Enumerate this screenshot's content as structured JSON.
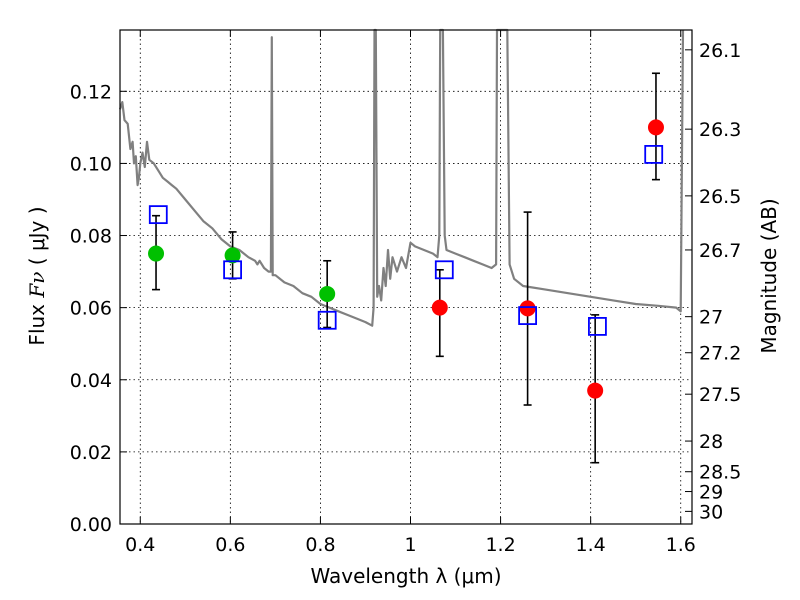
{
  "chart_data": {
    "type": "scatter",
    "xlabel": "Wavelength  λ (μm)",
    "ylabel_text": "Flux ",
    "ylabel_math": "Fν",
    "ylabel_unit": " ( μJy )",
    "right_ylabel": "Magnitude (AB)",
    "xlim": [
      0.355,
      1.625
    ],
    "ylim": [
      0.0,
      0.137
    ],
    "grid": true,
    "x_ticks": [
      {
        "value": 0.4,
        "label": "0.4"
      },
      {
        "value": 0.6,
        "label": "0.6"
      },
      {
        "value": 0.8,
        "label": "0.8"
      },
      {
        "value": 1.0,
        "label": "1"
      },
      {
        "value": 1.2,
        "label": "1.2"
      },
      {
        "value": 1.4,
        "label": "1.4"
      },
      {
        "value": 1.6,
        "label": "1.6"
      }
    ],
    "y_ticks": [
      {
        "value": 0.0,
        "label": "0.00"
      },
      {
        "value": 0.02,
        "label": "0.02"
      },
      {
        "value": 0.04,
        "label": "0.04"
      },
      {
        "value": 0.06,
        "label": "0.06"
      },
      {
        "value": 0.08,
        "label": "0.08"
      },
      {
        "value": 0.1,
        "label": "0.10"
      },
      {
        "value": 0.12,
        "label": "0.12"
      }
    ],
    "right_ticks": [
      {
        "flux": 0.1315,
        "label": "26.1"
      },
      {
        "flux": 0.1095,
        "label": "26.3"
      },
      {
        "flux": 0.091,
        "label": "26.5"
      },
      {
        "flux": 0.076,
        "label": "26.7"
      },
      {
        "flux": 0.0575,
        "label": "27"
      },
      {
        "flux": 0.0475,
        "label": "27.2"
      },
      {
        "flux": 0.036,
        "label": "27.5"
      },
      {
        "flux": 0.023,
        "label": "28"
      },
      {
        "flux": 0.0145,
        "label": "28.5"
      },
      {
        "flux": 0.009,
        "label": "29"
      },
      {
        "flux": 0.0035,
        "label": "30"
      }
    ],
    "model_spectrum": {
      "color": "#808080",
      "points": [
        [
          0.355,
          0.115
        ],
        [
          0.36,
          0.117
        ],
        [
          0.365,
          0.112
        ],
        [
          0.372,
          0.111
        ],
        [
          0.378,
          0.104
        ],
        [
          0.383,
          0.106
        ],
        [
          0.386,
          0.1
        ],
        [
          0.39,
          0.102
        ],
        [
          0.394,
          0.094
        ],
        [
          0.397,
          0.096
        ],
        [
          0.4,
          0.1
        ],
        [
          0.405,
          0.103
        ],
        [
          0.41,
          0.099
        ],
        [
          0.415,
          0.106
        ],
        [
          0.42,
          0.101
        ],
        [
          0.43,
          0.1
        ],
        [
          0.44,
          0.098
        ],
        [
          0.45,
          0.096
        ],
        [
          0.46,
          0.095
        ],
        [
          0.47,
          0.094
        ],
        [
          0.48,
          0.093
        ],
        [
          0.5,
          0.09
        ],
        [
          0.52,
          0.087
        ],
        [
          0.54,
          0.084
        ],
        [
          0.56,
          0.082
        ],
        [
          0.58,
          0.079
        ],
        [
          0.6,
          0.077
        ],
        [
          0.62,
          0.076
        ],
        [
          0.64,
          0.074
        ],
        [
          0.655,
          0.073
        ],
        [
          0.66,
          0.072
        ],
        [
          0.665,
          0.073
        ],
        [
          0.675,
          0.071
        ],
        [
          0.685,
          0.07
        ],
        [
          0.69,
          0.07
        ],
        [
          0.692,
          0.135
        ],
        [
          0.694,
          0.069
        ],
        [
          0.7,
          0.069
        ],
        [
          0.72,
          0.067
        ],
        [
          0.74,
          0.066
        ],
        [
          0.76,
          0.064
        ],
        [
          0.78,
          0.063
        ],
        [
          0.8,
          0.061
        ],
        [
          0.82,
          0.06
        ],
        [
          0.84,
          0.059
        ],
        [
          0.86,
          0.058
        ],
        [
          0.88,
          0.057
        ],
        [
          0.9,
          0.056
        ],
        [
          0.915,
          0.055
        ],
        [
          0.918,
          0.06
        ],
        [
          0.92,
          0.137
        ],
        [
          0.923,
          0.137
        ],
        [
          0.926,
          0.063
        ],
        [
          0.93,
          0.066
        ],
        [
          0.935,
          0.062
        ],
        [
          0.94,
          0.071
        ],
        [
          0.945,
          0.066
        ],
        [
          0.95,
          0.076
        ],
        [
          0.955,
          0.068
        ],
        [
          0.96,
          0.074
        ],
        [
          0.97,
          0.07
        ],
        [
          0.98,
          0.074
        ],
        [
          0.99,
          0.071
        ],
        [
          1.0,
          0.078
        ],
        [
          1.01,
          0.077
        ],
        [
          1.03,
          0.076
        ],
        [
          1.05,
          0.075
        ],
        [
          1.06,
          0.074
        ],
        [
          1.064,
          0.08
        ],
        [
          1.066,
          0.137
        ],
        [
          1.072,
          0.137
        ],
        [
          1.076,
          0.08
        ],
        [
          1.08,
          0.076
        ],
        [
          1.1,
          0.075
        ],
        [
          1.12,
          0.074
        ],
        [
          1.14,
          0.073
        ],
        [
          1.16,
          0.072
        ],
        [
          1.18,
          0.071
        ],
        [
          1.19,
          0.072
        ],
        [
          1.192,
          0.137
        ],
        [
          1.215,
          0.137
        ],
        [
          1.22,
          0.072
        ],
        [
          1.23,
          0.068
        ],
        [
          1.25,
          0.066
        ],
        [
          1.3,
          0.065
        ],
        [
          1.35,
          0.064
        ],
        [
          1.4,
          0.063
        ],
        [
          1.45,
          0.062
        ],
        [
          1.5,
          0.061
        ],
        [
          1.55,
          0.0605
        ],
        [
          1.59,
          0.06
        ],
        [
          1.6,
          0.059
        ],
        [
          1.605,
          0.137
        ]
      ]
    },
    "series": [
      {
        "marker": "circle",
        "color": "#00c000",
        "points": [
          {
            "x": 0.435,
            "y": 0.075,
            "err_low": 0.065,
            "err_high": 0.0855
          },
          {
            "x": 0.605,
            "y": 0.0745,
            "err_low": 0.068,
            "err_high": 0.081
          },
          {
            "x": 0.815,
            "y": 0.0638,
            "err_low": 0.0545,
            "err_high": 0.073
          }
        ]
      },
      {
        "marker": "circle",
        "color": "#ff0000",
        "points": [
          {
            "x": 1.065,
            "y": 0.06,
            "err_low": 0.0465,
            "err_high": 0.0705
          },
          {
            "x": 1.26,
            "y": 0.0598,
            "err_low": 0.033,
            "err_high": 0.0865
          },
          {
            "x": 1.41,
            "y": 0.037,
            "err_low": 0.017,
            "err_high": 0.058
          },
          {
            "x": 1.545,
            "y": 0.11,
            "err_low": 0.0955,
            "err_high": 0.125
          }
        ]
      },
      {
        "marker": "square",
        "color": "#0000ff",
        "points": [
          {
            "x": 0.44,
            "y": 0.0858
          },
          {
            "x": 0.605,
            "y": 0.0705
          },
          {
            "x": 0.815,
            "y": 0.0565
          },
          {
            "x": 1.075,
            "y": 0.0705
          },
          {
            "x": 1.26,
            "y": 0.0578
          },
          {
            "x": 1.415,
            "y": 0.0548
          },
          {
            "x": 1.54,
            "y": 0.1025
          }
        ]
      }
    ]
  }
}
